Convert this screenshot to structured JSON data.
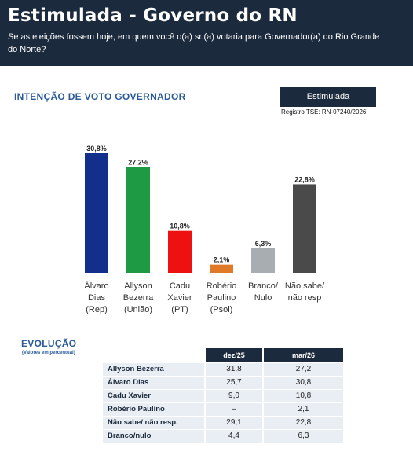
{
  "header": {
    "title": "Estimulada - Governo do RN",
    "question": "Se as eleições fossem hoje, em quem você o(a) sr.(a) votaria para Governador(a) do Rio Grande do Norte?"
  },
  "section_title": "INTENÇÃO DE VOTO GOVERNADOR",
  "tag": "Estimulada",
  "registro": "Registro TSE: RN-07240/2026",
  "chart_data": {
    "type": "bar",
    "categories": [
      [
        "Álvaro",
        "Dias",
        "(Rep)"
      ],
      [
        "Allyson",
        "Bezerra",
        "(União)"
      ],
      [
        "Cadu",
        "Xavier",
        "(PT)"
      ],
      [
        "Robério",
        "Paulino",
        "(Psol)"
      ],
      [
        "Branco/",
        "Nulo"
      ],
      [
        "Não sabe/",
        "não resp"
      ]
    ],
    "values": [
      30.8,
      27.2,
      10.8,
      2.1,
      6.3,
      22.8
    ],
    "value_labels": [
      "30,8%",
      "27,2%",
      "10,8%",
      "2,1%",
      "6,3%",
      "22,8%"
    ],
    "colors": [
      "#122f8c",
      "#1e9a45",
      "#ee1111",
      "#e07a28",
      "#a8adb1",
      "#4a4a4a"
    ],
    "ylim": [
      0,
      32
    ]
  },
  "evolution": {
    "title": "EVOLUÇÃO",
    "subtitle": "(Valores em percentual)",
    "columns": [
      "dez/25",
      "mar/26"
    ],
    "rows": [
      {
        "name": "Allyson Bezerra",
        "values": [
          "31,8",
          "27,2"
        ]
      },
      {
        "name": "Álvaro Dias",
        "values": [
          "25,7",
          "30,8"
        ]
      },
      {
        "name": "Cadu Xavier",
        "values": [
          "9,0",
          "10,8"
        ]
      },
      {
        "name": "Robério Paulino",
        "values": [
          "–",
          "2,1"
        ]
      },
      {
        "name": "Não sabe/ não resp.",
        "values": [
          "29,1",
          "22,8"
        ]
      },
      {
        "name": "Branco/nulo",
        "values": [
          "4,4",
          "6,3"
        ]
      }
    ]
  }
}
